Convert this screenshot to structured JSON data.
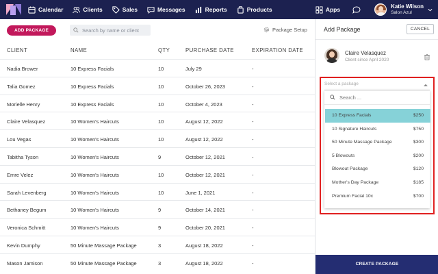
{
  "nav": {
    "items": [
      {
        "label": "Calendar",
        "icon": "calendar-icon"
      },
      {
        "label": "Clients",
        "icon": "users-icon"
      },
      {
        "label": "Sales",
        "icon": "tag-icon"
      },
      {
        "label": "Messages",
        "icon": "message-icon"
      },
      {
        "label": "Reports",
        "icon": "bar-chart-icon"
      },
      {
        "label": "Products",
        "icon": "product-icon"
      }
    ],
    "apps_label": "Apps",
    "user": {
      "name": "Katie Wilson",
      "org": "Salon Azul"
    }
  },
  "toolbar": {
    "add_label": "ADD PACKAGE",
    "search_placeholder": "Search by name or client",
    "setup_label": "Package Setup"
  },
  "table": {
    "columns": [
      "CLIENT",
      "NAME",
      "QTY",
      "PURCHASE DATE",
      "EXPIRATION DATE"
    ],
    "rows": [
      {
        "client": "Nadia Brower",
        "name": "10 Express Facials",
        "qty": "10",
        "purchase": "July 29",
        "expiration": "-"
      },
      {
        "client": "Talia Gomez",
        "name": "10 Express Facials",
        "qty": "10",
        "purchase": "October 26, 2023",
        "expiration": "-"
      },
      {
        "client": "Morielle Henry",
        "name": "10 Express Facials",
        "qty": "10",
        "purchase": "October 4, 2023",
        "expiration": "-"
      },
      {
        "client": "Claire Velasquez",
        "name": "10 Women's Haircuts",
        "qty": "10",
        "purchase": "August 12, 2022",
        "expiration": "-"
      },
      {
        "client": "Lou Vegas",
        "name": "10 Women's Haircuts",
        "qty": "10",
        "purchase": "August 12, 2022",
        "expiration": "-"
      },
      {
        "client": "Tabitha Tyson",
        "name": "10 Women's Haircuts",
        "qty": "9",
        "purchase": "October 12, 2021",
        "expiration": "-"
      },
      {
        "client": "Emre Velez",
        "name": "10 Women's Haircuts",
        "qty": "10",
        "purchase": "October 12, 2021",
        "expiration": "-"
      },
      {
        "client": "Sarah Levenberg",
        "name": "10 Women's Haircuts",
        "qty": "10",
        "purchase": "June 1, 2021",
        "expiration": "-"
      },
      {
        "client": "Bethaney Begum",
        "name": "10 Women's Haircuts",
        "qty": "9",
        "purchase": "October 14, 2021",
        "expiration": "-"
      },
      {
        "client": "Veronica Schmitt",
        "name": "10 Women's Haircuts",
        "qty": "9",
        "purchase": "October 20, 2021",
        "expiration": "-"
      },
      {
        "client": "Kevin Dumphy",
        "name": "50 Minute Massage Package",
        "qty": "3",
        "purchase": "August 18, 2022",
        "expiration": "-"
      },
      {
        "client": "Mason Jamison",
        "name": "50 Minute Massage Package",
        "qty": "3",
        "purchase": "August 18, 2022",
        "expiration": "-"
      }
    ]
  },
  "panel": {
    "title": "Add Package",
    "cancel_label": "CANCEL",
    "client_name": "Claire Velasquez",
    "client_since": "Client since April 2020",
    "select_placeholder": "Select a package",
    "dropdown_search_placeholder": "Search ...",
    "options": [
      {
        "name": "10 Express Facials",
        "price": "$250",
        "selected": true
      },
      {
        "name": "10 Signature Haircuts",
        "price": "$750",
        "selected": false
      },
      {
        "name": "50 Minute Massage Package",
        "price": "$300",
        "selected": false
      },
      {
        "name": "5 Blowouts",
        "price": "$200",
        "selected": false
      },
      {
        "name": "Blowout Package",
        "price": "$120",
        "selected": false
      },
      {
        "name": "Mother's Day Package",
        "price": "$185",
        "selected": false
      },
      {
        "name": "Premium Facial 10x",
        "price": "$700",
        "selected": false
      }
    ],
    "create_label": "CREATE PACKAGE"
  },
  "colors": {
    "nav_bg": "#1c2150",
    "add_button": "#c2185b",
    "selected_option": "#86d2d8",
    "create_button": "#242d72",
    "highlight_border": "#e02020"
  }
}
